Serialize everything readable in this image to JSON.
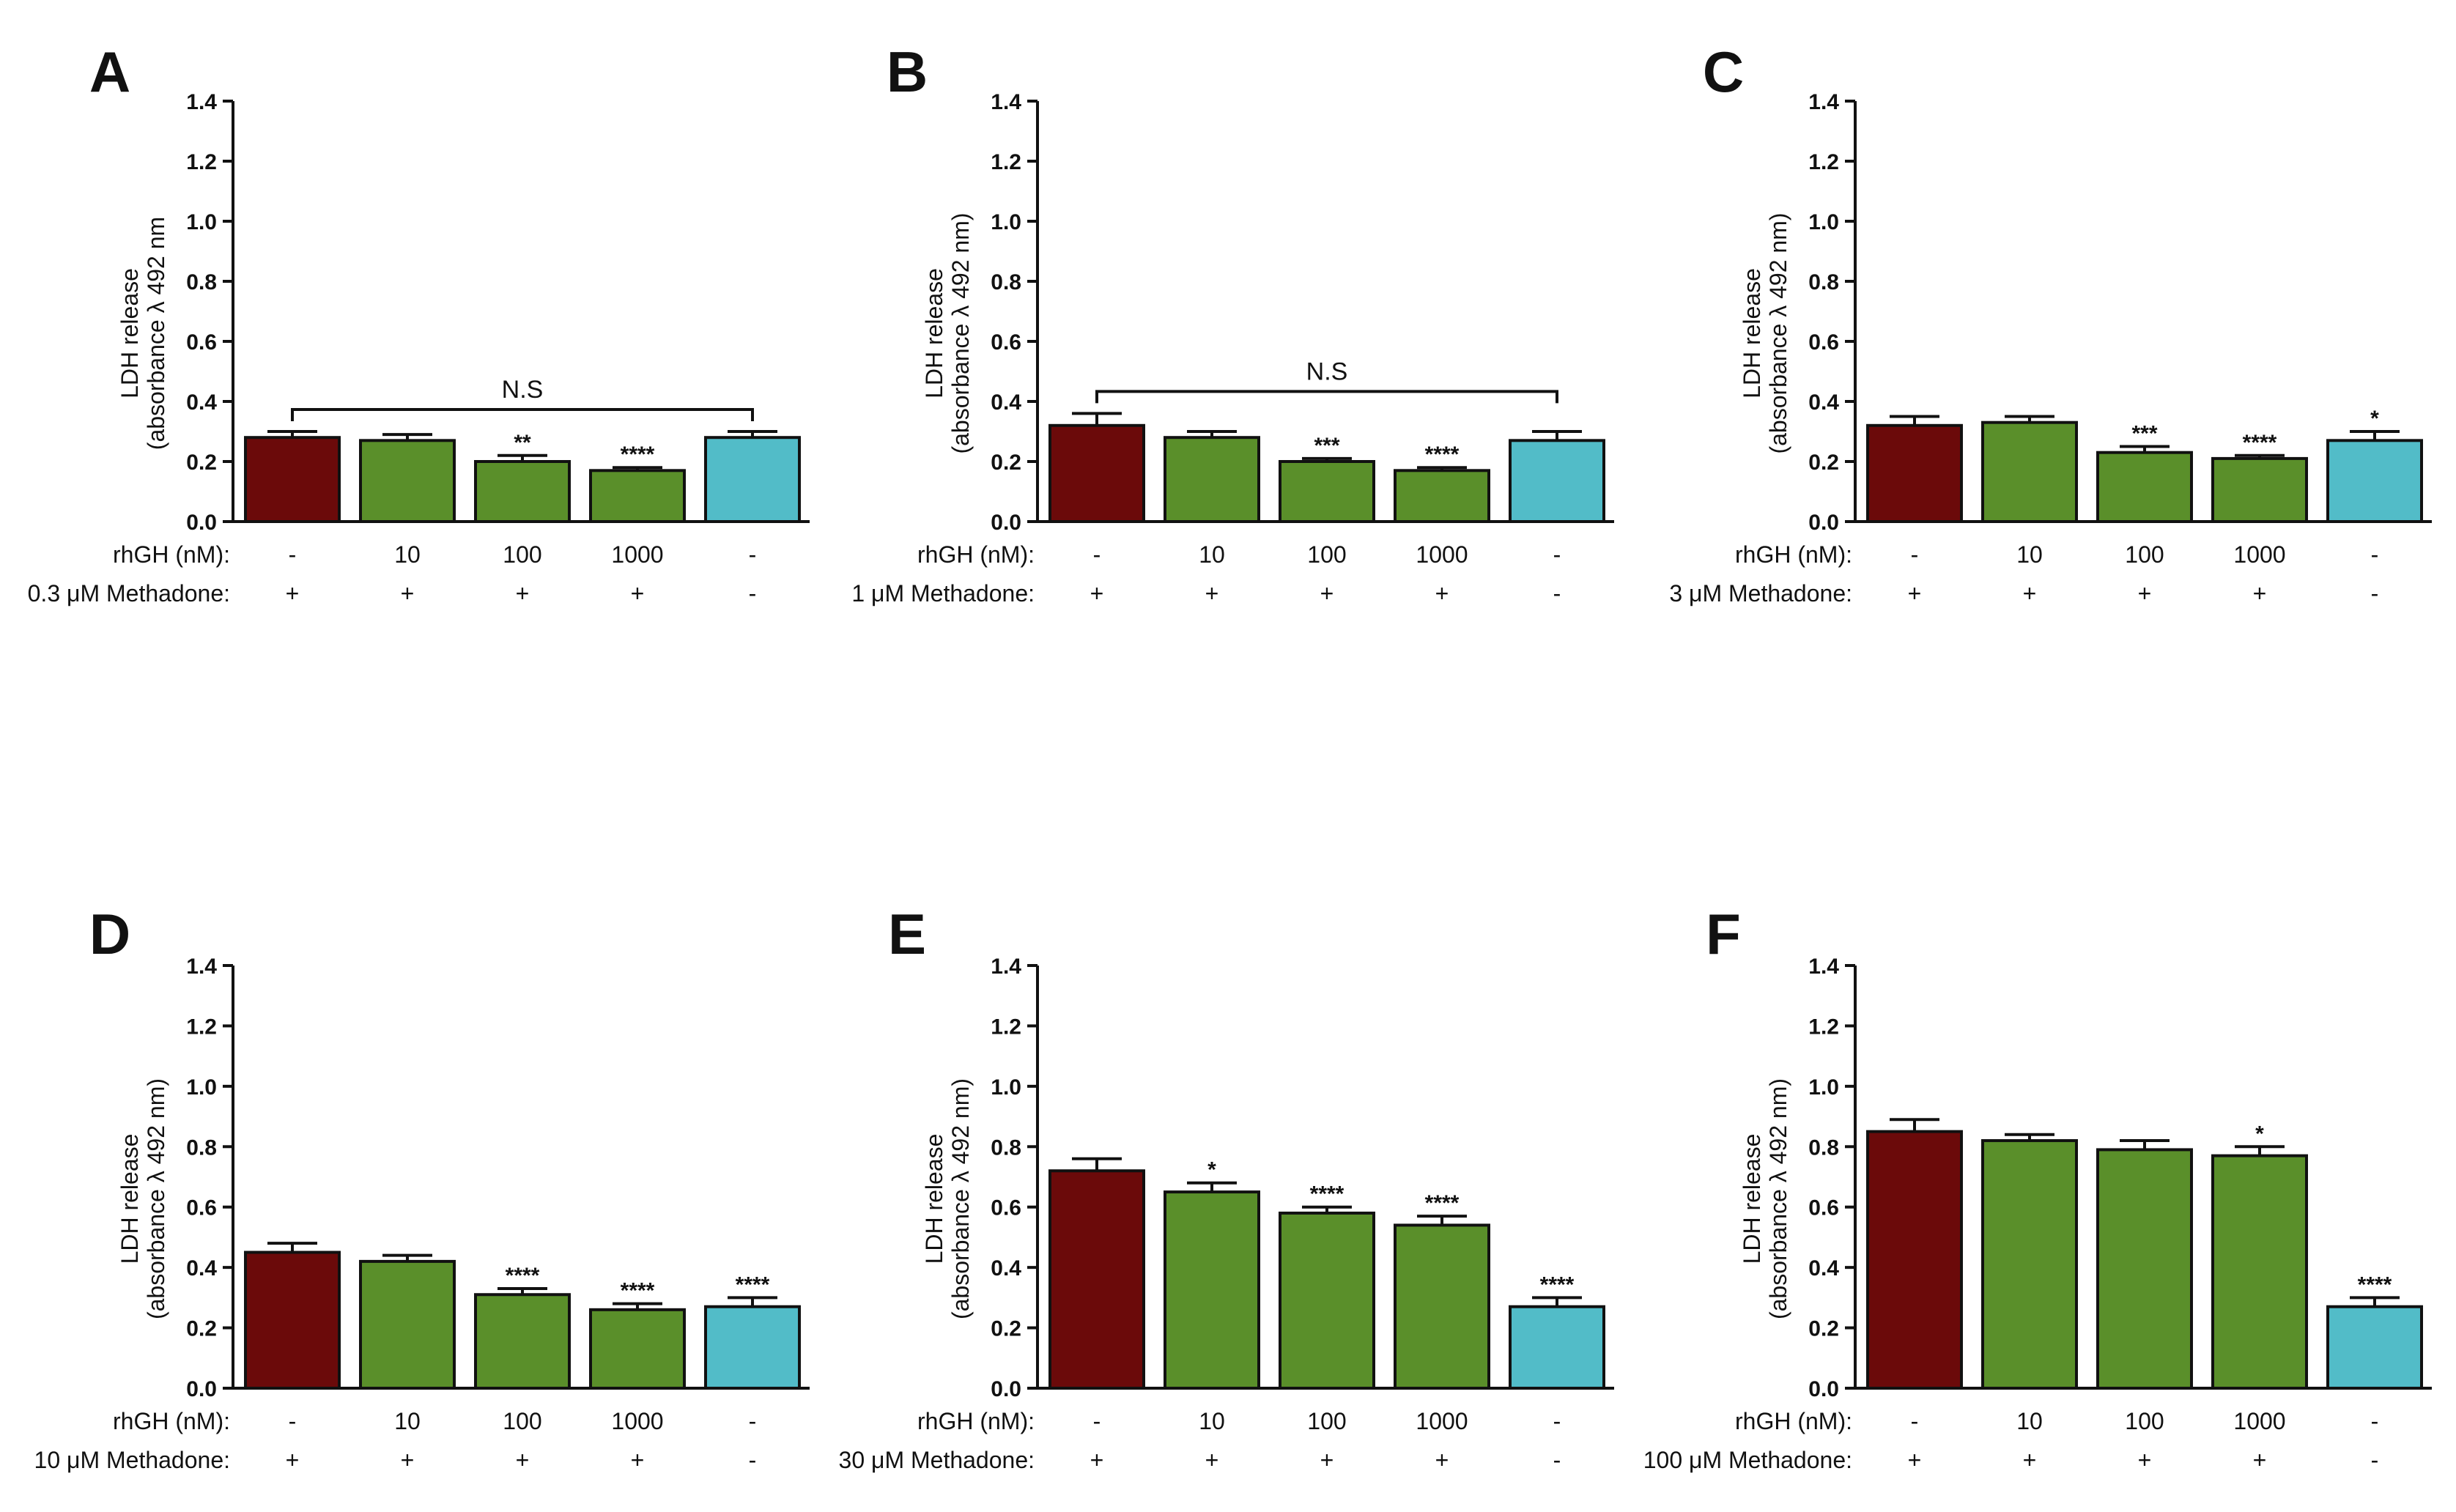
{
  "colors": {
    "control": "#6b0a0a",
    "rhgh": "#5a8f2a",
    "vehicle": "#52bcc8",
    "axis": "#111111"
  },
  "chart_data": [
    {
      "panel": "A",
      "type": "bar",
      "ylabel_line1": "LDH release",
      "ylabel_line2": "(absorbance λ 492 nm",
      "ylim": [
        0,
        1.4
      ],
      "yticks": [
        "0.0",
        "0.2",
        "0.4",
        "0.6",
        "0.8",
        "1.0",
        "1.2",
        "1.4"
      ],
      "values": [
        0.28,
        0.27,
        0.2,
        0.17,
        0.28
      ],
      "errors": [
        0.02,
        0.02,
        0.02,
        0.01,
        0.02
      ],
      "significance": [
        "",
        "",
        "**",
        "****",
        ""
      ],
      "bracket_label": "N.S",
      "row1_label": "rhGH (nM):",
      "row1_values": [
        "-",
        "10",
        "100",
        "1000",
        "-"
      ],
      "row2_label": "0.3 μM Methadone:",
      "row2_values": [
        "+",
        "+",
        "+",
        "+",
        "-"
      ]
    },
    {
      "panel": "B",
      "type": "bar",
      "ylabel_line1": "LDH release",
      "ylabel_line2": "(absorbance λ 492 nm)",
      "ylim": [
        0,
        1.4
      ],
      "yticks": [
        "0.0",
        "0.2",
        "0.4",
        "0.6",
        "0.8",
        "1.0",
        "1.2",
        "1.4"
      ],
      "values": [
        0.32,
        0.28,
        0.2,
        0.17,
        0.27
      ],
      "errors": [
        0.04,
        0.02,
        0.01,
        0.01,
        0.03
      ],
      "significance": [
        "",
        "",
        "***",
        "****",
        ""
      ],
      "bracket_label": "N.S",
      "row1_label": "rhGH (nM):",
      "row1_values": [
        "-",
        "10",
        "100",
        "1000",
        "-"
      ],
      "row2_label": "1 μM Methadone:",
      "row2_values": [
        "+",
        "+",
        "+",
        "+",
        "-"
      ]
    },
    {
      "panel": "C",
      "type": "bar",
      "ylabel_line1": "LDH release",
      "ylabel_line2": "(absorbance λ 492 nm)",
      "ylim": [
        0,
        1.4
      ],
      "yticks": [
        "0.0",
        "0.2",
        "0.4",
        "0.6",
        "0.8",
        "1.0",
        "1.2",
        "1.4"
      ],
      "values": [
        0.32,
        0.33,
        0.23,
        0.21,
        0.27
      ],
      "errors": [
        0.03,
        0.02,
        0.02,
        0.01,
        0.03
      ],
      "significance": [
        "",
        "",
        "***",
        "****",
        "*"
      ],
      "bracket_label": "",
      "row1_label": "rhGH (nM):",
      "row1_values": [
        "-",
        "10",
        "100",
        "1000",
        "-"
      ],
      "row2_label": "3 μM Methadone:",
      "row2_values": [
        "+",
        "+",
        "+",
        "+",
        "-"
      ]
    },
    {
      "panel": "D",
      "type": "bar",
      "ylabel_line1": "LDH release",
      "ylabel_line2": "(absorbance λ 492 nm)",
      "ylim": [
        0,
        1.4
      ],
      "yticks": [
        "0.0",
        "0.2",
        "0.4",
        "0.6",
        "0.8",
        "1.0",
        "1.2",
        "1.4"
      ],
      "values": [
        0.45,
        0.42,
        0.31,
        0.26,
        0.27
      ],
      "errors": [
        0.03,
        0.02,
        0.02,
        0.02,
        0.03
      ],
      "significance": [
        "",
        "",
        "****",
        "****",
        "****"
      ],
      "bracket_label": "",
      "row1_label": "rhGH (nM):",
      "row1_values": [
        "-",
        "10",
        "100",
        "1000",
        "-"
      ],
      "row2_label": "10 μM Methadone:",
      "row2_values": [
        "+",
        "+",
        "+",
        "+",
        "-"
      ]
    },
    {
      "panel": "E",
      "type": "bar",
      "ylabel_line1": "LDH release",
      "ylabel_line2": "(absorbance λ 492 nm)",
      "ylim": [
        0,
        1.4
      ],
      "yticks": [
        "0.0",
        "0.2",
        "0.4",
        "0.6",
        "0.8",
        "1.0",
        "1.2",
        "1.4"
      ],
      "values": [
        0.72,
        0.65,
        0.58,
        0.54,
        0.27
      ],
      "errors": [
        0.04,
        0.03,
        0.02,
        0.03,
        0.03
      ],
      "significance": [
        "",
        "*",
        "****",
        "****",
        "****"
      ],
      "bracket_label": "",
      "row1_label": "rhGH (nM):",
      "row1_values": [
        "-",
        "10",
        "100",
        "1000",
        "-"
      ],
      "row2_label": "30 μM Methadone:",
      "row2_values": [
        "+",
        "+",
        "+",
        "+",
        "-"
      ]
    },
    {
      "panel": "F",
      "type": "bar",
      "ylabel_line1": "LDH release",
      "ylabel_line2": "(absorbance λ 492 nm)",
      "ylim": [
        0,
        1.4
      ],
      "yticks": [
        "0.0",
        "0.2",
        "0.4",
        "0.6",
        "0.8",
        "1.0",
        "1.2",
        "1.4"
      ],
      "values": [
        0.85,
        0.82,
        0.79,
        0.77,
        0.27
      ],
      "errors": [
        0.04,
        0.02,
        0.03,
        0.03,
        0.03
      ],
      "significance": [
        "",
        "",
        "",
        "*",
        "****"
      ],
      "bracket_label": "",
      "row1_label": "rhGH (nM):",
      "row1_values": [
        "-",
        "10",
        "100",
        "1000",
        "-"
      ],
      "row2_label": "100 μM Methadone:",
      "row2_values": [
        "+",
        "+",
        "+",
        "+",
        "-"
      ]
    }
  ]
}
